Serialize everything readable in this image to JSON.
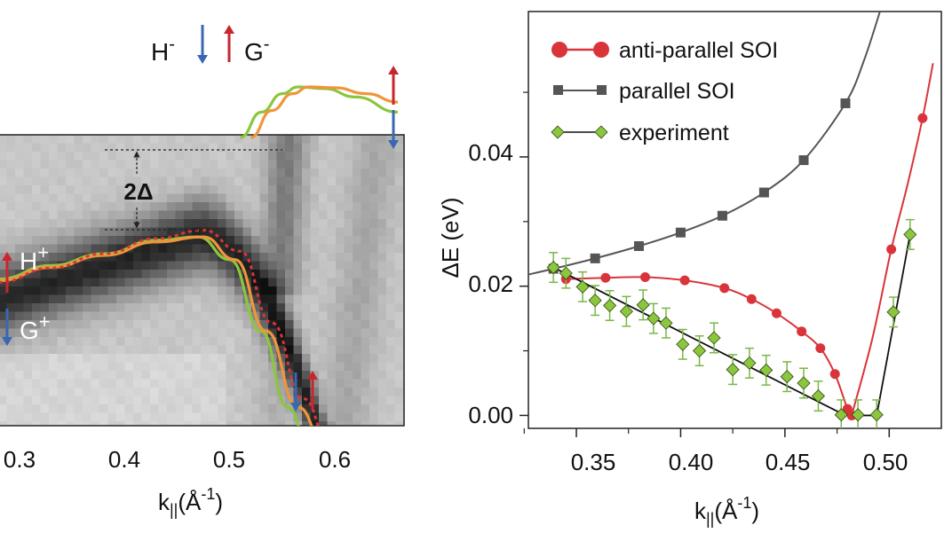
{
  "chart_data": [
    {
      "type": "heatmap",
      "description_panel": "ARPES intensity map with overlaid band dispersions",
      "xlabel": "k",
      "xlabel_sub": "||",
      "xlabel_unit": "(Å",
      "xlabel_exp": "-1",
      "xlabel_close": ")",
      "x_ticks": [
        "0.3",
        "0.4",
        "0.5",
        "0.6"
      ],
      "xlim": [
        0.28,
        0.67
      ],
      "band_labels": {
        "h_minus": "H",
        "h_minus_sup": "-",
        "g_minus": "G",
        "g_minus_sup": "-",
        "h_plus": "H",
        "h_plus_sup": "+",
        "g_plus": "G",
        "g_plus_sup": "+"
      },
      "gap_label": "2Δ",
      "series": [
        {
          "name": "upper band (green)",
          "color": "#8cc63f",
          "x": [
            0.51,
            0.53,
            0.55,
            0.565,
            0.59,
            0.62,
            0.66
          ],
          "y": [
            1.0,
            0.7,
            0.48,
            0.4,
            0.42,
            0.52,
            0.7
          ]
        },
        {
          "name": "upper band (orange)",
          "color": "#f0953a",
          "x": [
            0.52,
            0.54,
            0.56,
            0.575,
            0.6,
            0.63,
            0.66
          ],
          "y": [
            1.0,
            0.68,
            0.48,
            0.4,
            0.41,
            0.48,
            0.58
          ]
        },
        {
          "name": "lower band (green)",
          "color": "#8cc63f",
          "x": [
            0.28,
            0.33,
            0.38,
            0.43,
            0.47,
            0.5,
            0.53,
            0.555,
            0.575
          ],
          "y": [
            2.68,
            2.52,
            2.38,
            2.22,
            2.18,
            2.45,
            3.3,
            4.2,
            4.62
          ]
        },
        {
          "name": "lower band (orange)",
          "color": "#f0953a",
          "x": [
            0.28,
            0.33,
            0.38,
            0.43,
            0.475,
            0.505,
            0.535,
            0.565,
            0.59
          ],
          "y": [
            2.7,
            2.54,
            2.4,
            2.24,
            2.18,
            2.45,
            3.3,
            4.2,
            4.62
          ]
        },
        {
          "name": "lower band fit (red dotted)",
          "color": "#d9343a",
          "x": [
            0.28,
            0.33,
            0.38,
            0.43,
            0.475,
            0.51,
            0.54,
            0.57,
            0.595
          ],
          "y": [
            2.72,
            2.55,
            2.38,
            2.2,
            2.1,
            2.35,
            3.2,
            4.1,
            4.62
          ]
        }
      ]
    },
    {
      "type": "line",
      "xlabel": "k",
      "xlabel_sub": "||",
      "xlabel_unit": "(Å",
      "xlabel_exp": "-1",
      "xlabel_close": ")",
      "ylabel": "ΔE (eV)",
      "xlim": [
        0.327,
        0.525
      ],
      "ylim": [
        -0.002,
        0.0625
      ],
      "x_ticks": [
        "0.35",
        "0.40",
        "0.45",
        "0.50"
      ],
      "x_tick_values": [
        0.35,
        0.4,
        0.45,
        0.5
      ],
      "y_ticks": [
        "0.00",
        "0.02",
        "0.04"
      ],
      "y_tick_values": [
        0.0,
        0.02,
        0.04
      ],
      "legend": [
        "anti-parallel SOI",
        "parallel SOI",
        "experiment"
      ],
      "series": [
        {
          "name": "anti-parallel SOI",
          "color": "#d9343a",
          "marker": "circle",
          "x": [
            0.345,
            0.364,
            0.383,
            0.402,
            0.421,
            0.434,
            0.446,
            0.458,
            0.467,
            0.474,
            0.48,
            0.482,
            0.501,
            0.516
          ],
          "y": [
            0.0211,
            0.0213,
            0.0214,
            0.0209,
            0.0197,
            0.018,
            0.0158,
            0.013,
            0.0104,
            0.0064,
            0.001,
            0.0,
            0.0257,
            0.046
          ]
        },
        {
          "name": "parallel SOI",
          "color": "#555555",
          "marker": "square",
          "x": [
            0.339,
            0.359,
            0.38,
            0.4,
            0.42,
            0.44,
            0.459,
            0.479
          ],
          "y": [
            0.0227,
            0.0243,
            0.0262,
            0.0283,
            0.0309,
            0.0345,
            0.0395,
            0.0483
          ]
        },
        {
          "name": "experiment",
          "color": "#8cc63f",
          "marker": "diamond",
          "x": [
            0.339,
            0.345,
            0.353,
            0.359,
            0.366,
            0.374,
            0.382,
            0.387,
            0.393,
            0.401,
            0.409,
            0.416,
            0.425,
            0.433,
            0.441,
            0.451,
            0.459,
            0.466,
            0.477,
            0.485,
            0.494,
            0.502,
            0.51
          ],
          "y": [
            0.0229,
            0.022,
            0.0199,
            0.0178,
            0.017,
            0.0161,
            0.0171,
            0.015,
            0.0143,
            0.011,
            0.01,
            0.012,
            0.0071,
            0.0081,
            0.007,
            0.006,
            0.005,
            0.003,
            0.0001,
            0.0001,
            0.0001,
            0.016,
            0.028
          ],
          "err": 0.0023,
          "fit_x": [
            0.339,
            0.479,
            0.494,
            0.51
          ],
          "fit_y": [
            0.0229,
            0.0,
            0.0,
            0.028
          ]
        }
      ]
    }
  ]
}
